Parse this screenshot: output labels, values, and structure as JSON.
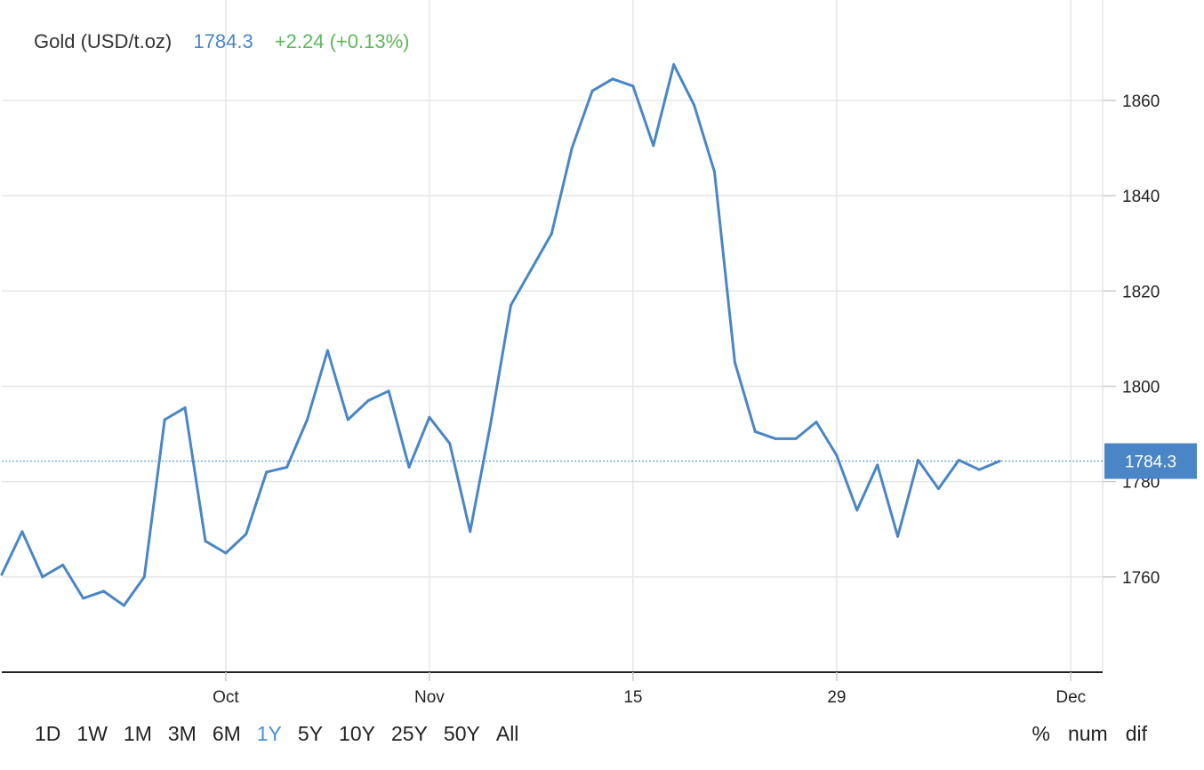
{
  "header": {
    "title": "Gold (USD/t.oz)",
    "price": "1784.3",
    "change": "+2.24 (+0.13%)"
  },
  "ranges": {
    "items": [
      "1D",
      "1W",
      "1M",
      "3M",
      "6M",
      "1Y",
      "5Y",
      "10Y",
      "25Y",
      "50Y",
      "All"
    ],
    "active": "1Y"
  },
  "modes": {
    "items": [
      "%",
      "num",
      "dif"
    ]
  },
  "colors": {
    "line": "#4a86c5",
    "price": "#4a86c5",
    "change": "#5cb85c",
    "active_range": "#4a90d9"
  },
  "chart_data": {
    "type": "line",
    "title": "Gold (USD/t.oz)",
    "xlabel": "",
    "ylabel": "",
    "ylim": [
      1740,
      1868
    ],
    "yticks": [
      1760,
      1780,
      1800,
      1820,
      1840,
      1860
    ],
    "xticks": [
      {
        "label": "Oct",
        "index": 11
      },
      {
        "label": "Nov",
        "index": 21
      },
      {
        "label": "15",
        "index": 31
      },
      {
        "label": "29",
        "index": 41
      },
      {
        "label": "Dec",
        "index": 52.5
      }
    ],
    "grid": true,
    "last_value": 1784.3,
    "last_value_label": "1784.3",
    "series": [
      {
        "values": [
          1760.5,
          1769.5,
          1760.0,
          1762.5,
          1755.5,
          1757.0,
          1754.0,
          1760.0,
          1793.0,
          1795.5,
          1767.5,
          1765.0,
          1769.0,
          1782.0,
          1783.0,
          1793.0,
          1807.5,
          1793.0,
          1797.0,
          1799.0,
          1783.0,
          1793.5,
          1788.0,
          1769.5,
          1792.0,
          1817.0,
          1824.5,
          1832.0,
          1850.0,
          1862.0,
          1864.5,
          1863.0,
          1850.5,
          1867.5,
          1859.0,
          1845.0,
          1805.0,
          1790.5,
          1789.0,
          1789.0,
          1792.5,
          1785.5,
          1774.0,
          1783.5,
          1768.5,
          1784.5,
          1778.5,
          1784.5,
          1782.5,
          1784.3
        ]
      }
    ]
  }
}
